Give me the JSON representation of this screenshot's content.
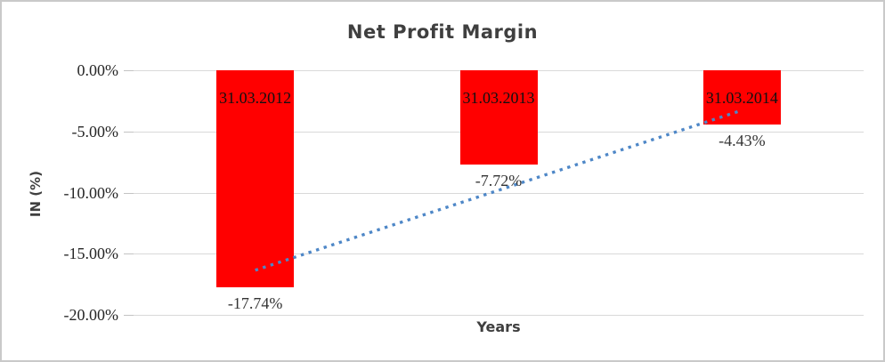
{
  "window": {
    "background": "#ffffff",
    "frame_border_color": "#c9c9c9"
  },
  "chart_data": {
    "type": "bar",
    "title": "Net Profit Margin",
    "xlabel": "Years",
    "ylabel": "IN (%)",
    "categories": [
      "31.03.2012",
      "31.03.2013",
      "31.03.2014"
    ],
    "values": [
      -17.74,
      -7.72,
      -4.43
    ],
    "value_labels": [
      "-17.74%",
      "-7.72%",
      "-4.43%"
    ],
    "ylim": [
      -20,
      0
    ],
    "y_ticks": [
      {
        "value": 0,
        "label": "0.00%"
      },
      {
        "value": -5,
        "label": "-5.00%"
      },
      {
        "value": -10,
        "label": "-10.00%"
      },
      {
        "value": -15,
        "label": "-15.00%"
      },
      {
        "value": -20,
        "label": "-20.00%"
      }
    ],
    "grid": true,
    "legend": "none",
    "bar_color": "#ff0000",
    "gridline_color": "#d9d9d9",
    "title_color": "#3f3f3f",
    "trendline": {
      "style": "dotted",
      "color": "#4e87c7",
      "start_value": -16.35,
      "end_value": -3.27
    }
  }
}
